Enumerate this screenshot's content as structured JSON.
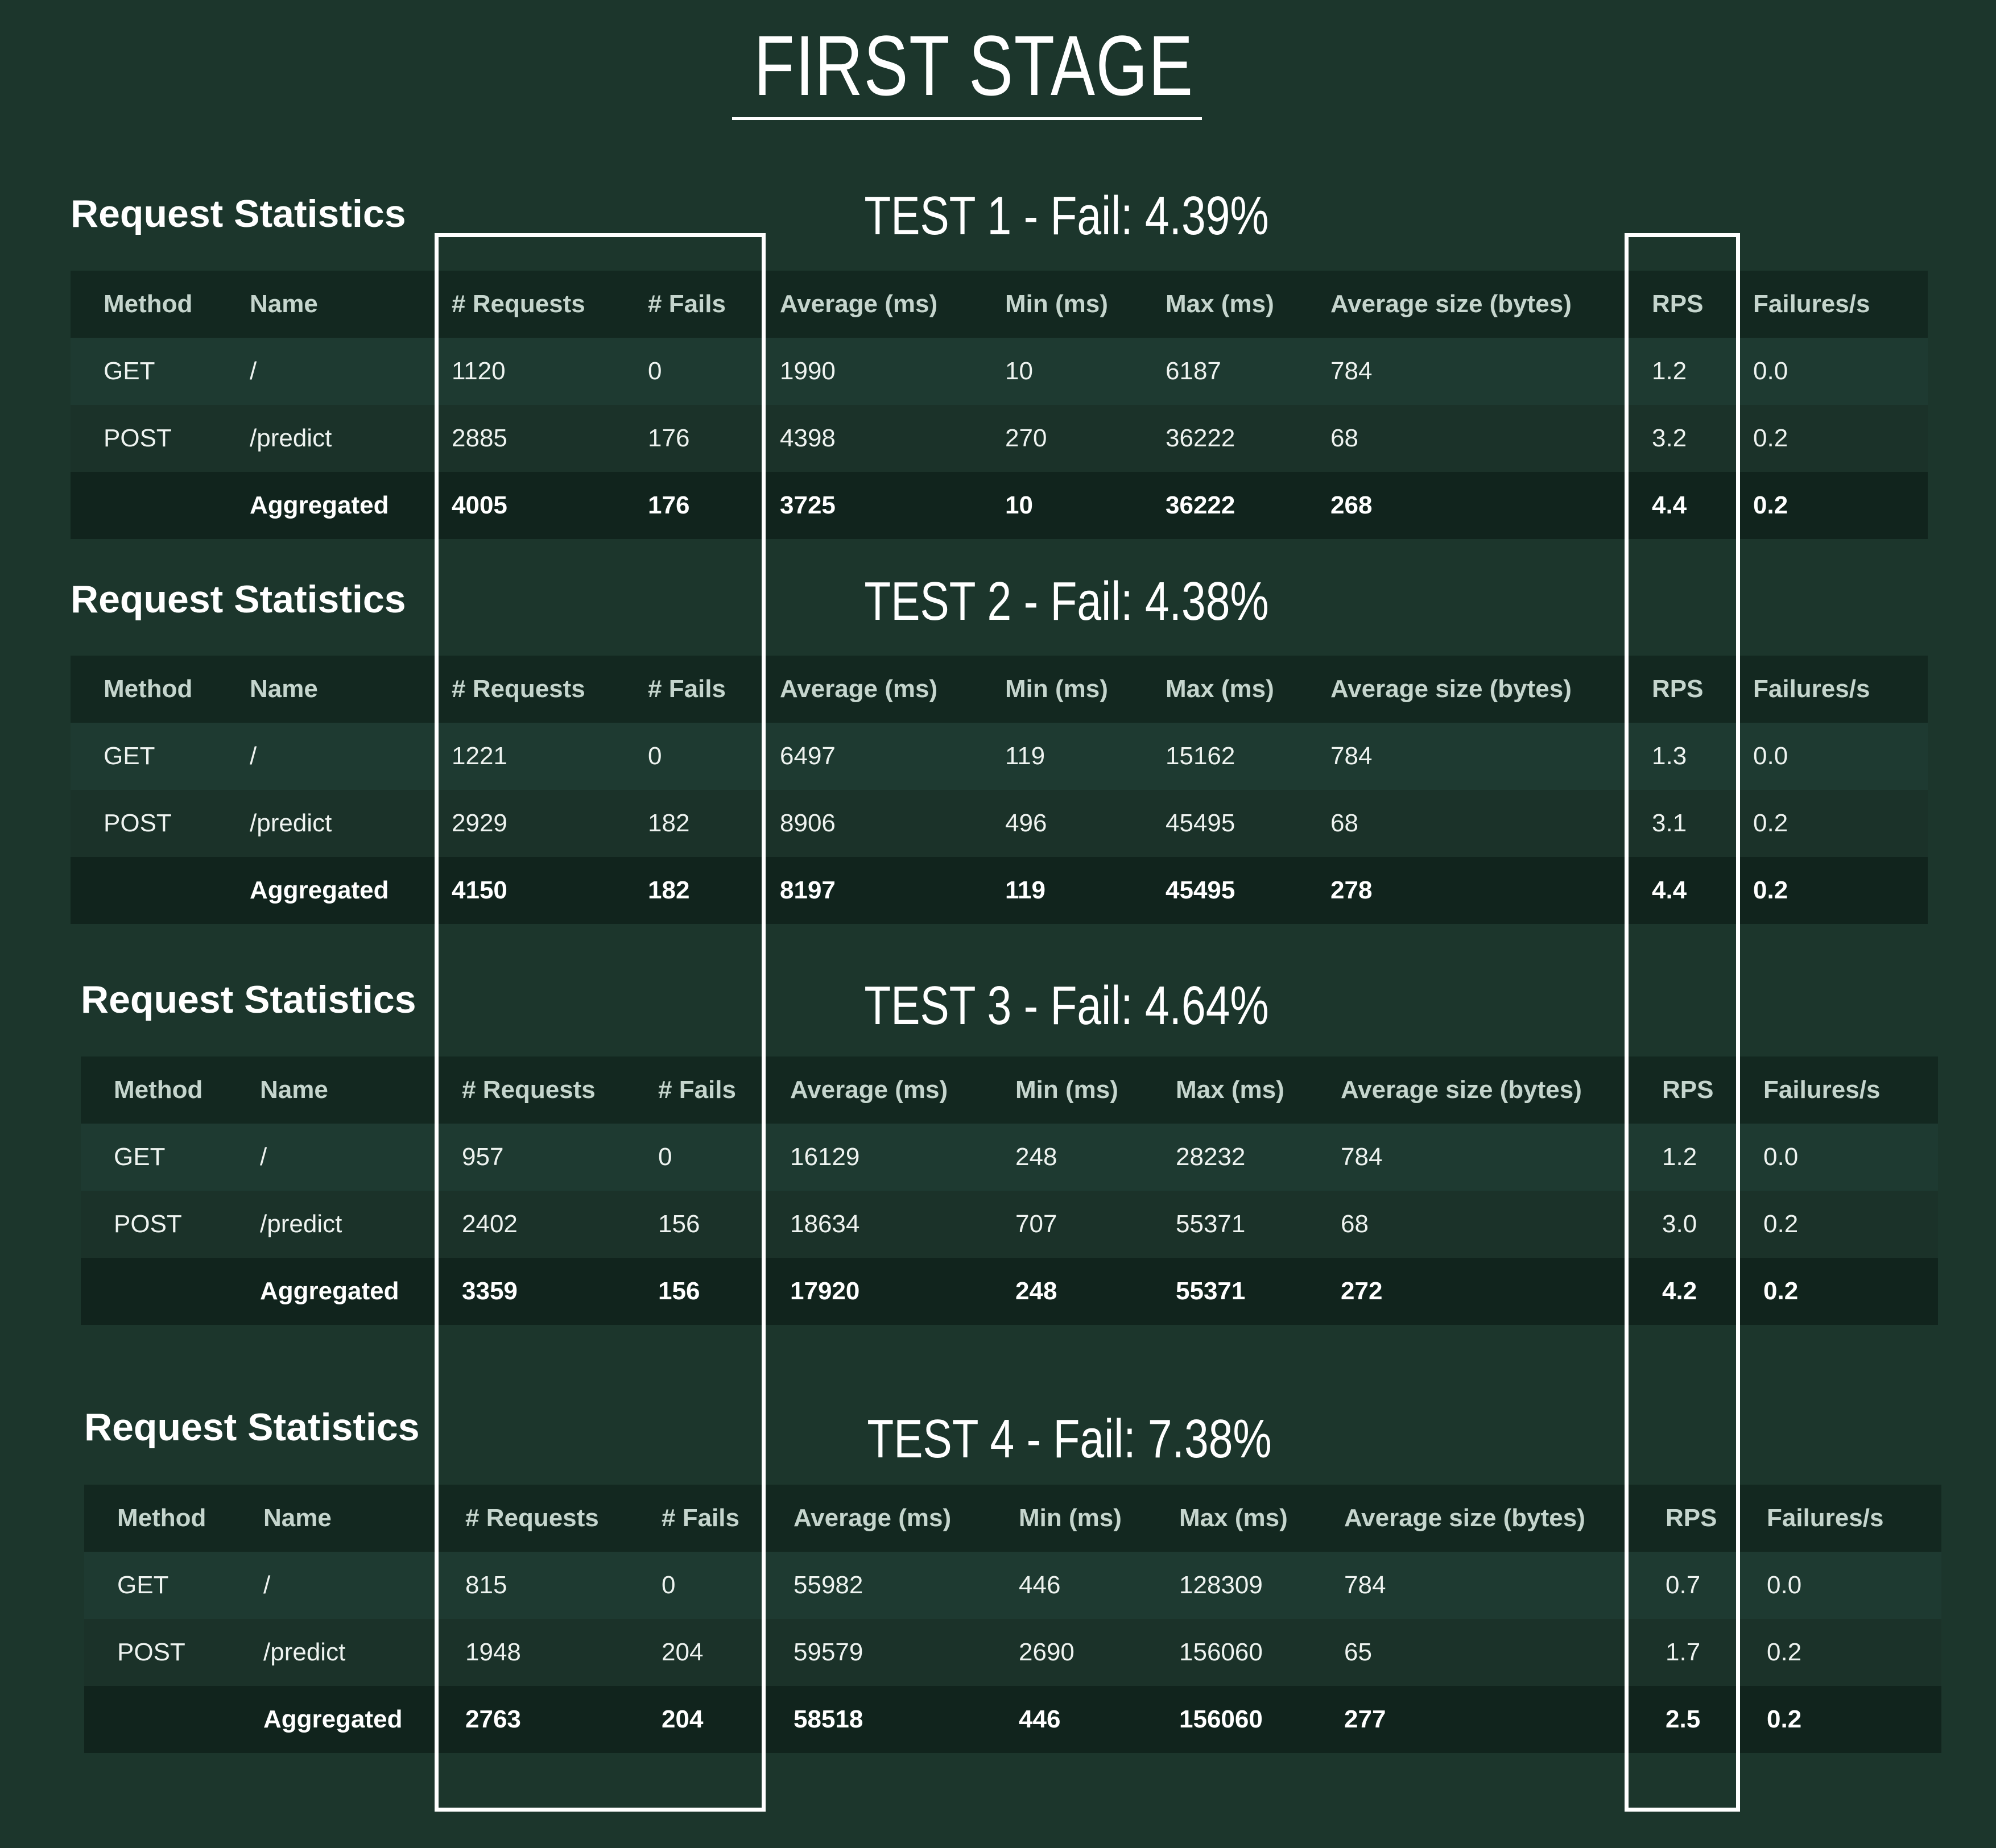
{
  "page": {
    "title": "FIRST STAGE"
  },
  "tables": [
    {
      "heading": "Request Statistics",
      "test_label": "TEST 1 -  Fail: 4.39%",
      "columns": [
        "Method",
        "Name",
        "# Requests",
        "# Fails",
        "Average (ms)",
        "Min (ms)",
        "Max (ms)",
        "Average size (bytes)",
        "RPS",
        "Failures/s"
      ],
      "rows": [
        [
          "GET",
          "/",
          "1120",
          "0",
          "1990",
          "10",
          "6187",
          "784",
          "1.2",
          "0.0"
        ],
        [
          "POST",
          "/predict",
          "2885",
          "176",
          "4398",
          "270",
          "36222",
          "68",
          "3.2",
          "0.2"
        ]
      ],
      "aggregated": [
        "",
        "Aggregated",
        "4005",
        "176",
        "3725",
        "10",
        "36222",
        "268",
        "4.4",
        "0.2"
      ]
    },
    {
      "heading": "Request Statistics",
      "test_label": "TEST 2 - Fail: 4.38%",
      "columns": [
        "Method",
        "Name",
        "# Requests",
        "# Fails",
        "Average (ms)",
        "Min (ms)",
        "Max (ms)",
        "Average size (bytes)",
        "RPS",
        "Failures/s"
      ],
      "rows": [
        [
          "GET",
          "/",
          "1221",
          "0",
          "6497",
          "119",
          "15162",
          "784",
          "1.3",
          "0.0"
        ],
        [
          "POST",
          "/predict",
          "2929",
          "182",
          "8906",
          "496",
          "45495",
          "68",
          "3.1",
          "0.2"
        ]
      ],
      "aggregated": [
        "",
        "Aggregated",
        "4150",
        "182",
        "8197",
        "119",
        "45495",
        "278",
        "4.4",
        "0.2"
      ]
    },
    {
      "heading": "Request Statistics",
      "test_label": "TEST 3 - Fail: 4.64%",
      "columns": [
        "Method",
        "Name",
        "# Requests",
        "# Fails",
        "Average (ms)",
        "Min (ms)",
        "Max (ms)",
        "Average size (bytes)",
        "RPS",
        "Failures/s"
      ],
      "rows": [
        [
          "GET",
          "/",
          "957",
          "0",
          "16129",
          "248",
          "28232",
          "784",
          "1.2",
          "0.0"
        ],
        [
          "POST",
          "/predict",
          "2402",
          "156",
          "18634",
          "707",
          "55371",
          "68",
          "3.0",
          "0.2"
        ]
      ],
      "aggregated": [
        "",
        "Aggregated",
        "3359",
        "156",
        "17920",
        "248",
        "55371",
        "272",
        "4.2",
        "0.2"
      ]
    },
    {
      "heading": "Request Statistics",
      "test_label": "TEST 4 - Fail: 7.38%",
      "columns": [
        "Method",
        "Name",
        "# Requests",
        "# Fails",
        "Average (ms)",
        "Min (ms)",
        "Max (ms)",
        "Average size (bytes)",
        "RPS",
        "Failures/s"
      ],
      "rows": [
        [
          "GET",
          "/",
          "815",
          "0",
          "55982",
          "446",
          "128309",
          "784",
          "0.7",
          "0.0"
        ],
        [
          "POST",
          "/predict",
          "1948",
          "204",
          "59579",
          "2690",
          "156060",
          "65",
          "1.7",
          "0.2"
        ]
      ],
      "aggregated": [
        "",
        "Aggregated",
        "2763",
        "204",
        "58518",
        "446",
        "156060",
        "277",
        "2.5",
        "0.2"
      ]
    }
  ],
  "colors": {
    "background": "#1c362c",
    "table_header": "#132820",
    "row_bg": "#1e3a31",
    "aggregated_bg": "#11241d",
    "highlight_border": "#ffffff"
  }
}
